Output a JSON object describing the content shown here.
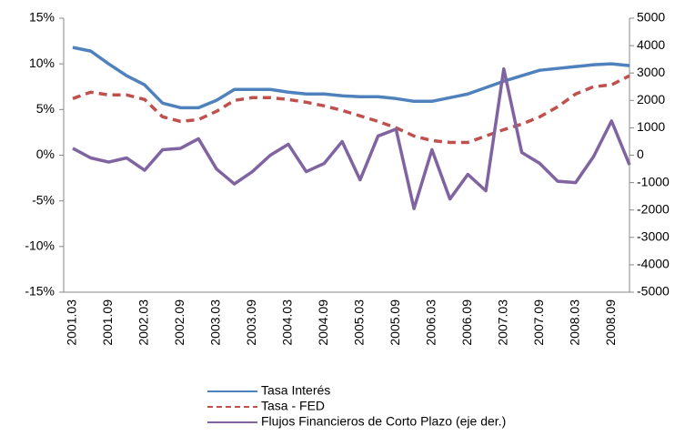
{
  "chart_data": {
    "type": "line",
    "categories": [
      "2001.03",
      null,
      "2001.09",
      null,
      "2002.03",
      null,
      "2002.09",
      null,
      "2003.03",
      null,
      "2003.09",
      null,
      "2004.03",
      null,
      "2004.09",
      null,
      "2005.03",
      null,
      "2005.09",
      null,
      "2006.03",
      null,
      "2006.09",
      null,
      "2007.03",
      null,
      "2007.09",
      null,
      "2008.03",
      null,
      "2008.09",
      null
    ],
    "series": [
      {
        "name": "Tasa Interés",
        "color": "#4f81bd",
        "dash": false,
        "values": [
          11.8,
          11.4,
          10.0,
          8.7,
          7.7,
          5.7,
          5.2,
          5.2,
          6.0,
          7.2,
          7.2,
          7.2,
          6.9,
          6.7,
          6.7,
          6.5,
          6.4,
          6.4,
          6.2,
          5.9,
          5.9,
          6.3,
          6.7,
          7.4,
          8.1,
          8.7,
          9.3,
          9.5,
          9.7,
          9.9,
          10.0,
          9.8
        ]
      },
      {
        "name": "Tasa - FED",
        "color": "#c0504d",
        "dash": true,
        "values": [
          6.2,
          6.9,
          6.6,
          6.6,
          6.1,
          4.2,
          3.7,
          3.9,
          4.8,
          6.0,
          6.3,
          6.3,
          6.1,
          5.8,
          5.4,
          4.9,
          4.3,
          3.7,
          3.0,
          2.1,
          1.6,
          1.4,
          1.4,
          2.1,
          2.8,
          3.4,
          4.2,
          5.3,
          6.7,
          7.5,
          7.7,
          8.7
        ]
      },
      {
        "name": "Flujos Financieros de Corto Plazo (eje der.)",
        "color": "#8064a2",
        "dash": false,
        "axis": "y2",
        "values": [
          250,
          -100,
          -250,
          -100,
          -550,
          200,
          250,
          600,
          -500,
          -1050,
          -600,
          0,
          400,
          -600,
          -300,
          500,
          -900,
          700,
          950,
          -1950,
          200,
          -1600,
          -700,
          -1300,
          3150,
          100,
          -300,
          -950,
          -1000,
          -50,
          1250,
          -350
        ]
      }
    ],
    "ylim": [
      -15,
      15
    ],
    "yticks": [
      {
        "value": -15,
        "label": "-15%"
      },
      {
        "value": -10,
        "label": "-10%"
      },
      {
        "value": -5,
        "label": "-5%"
      },
      {
        "value": 0,
        "label": "0%"
      },
      {
        "value": 5,
        "label": "5%"
      },
      {
        "value": 10,
        "label": "10%"
      },
      {
        "value": 15,
        "label": "15%"
      }
    ],
    "y2lim": [
      -5000,
      5000
    ],
    "y2ticks": [
      -5000,
      -4000,
      -3000,
      -2000,
      -1000,
      0,
      1000,
      2000,
      3000,
      4000,
      5000
    ],
    "legend": "bottom"
  }
}
